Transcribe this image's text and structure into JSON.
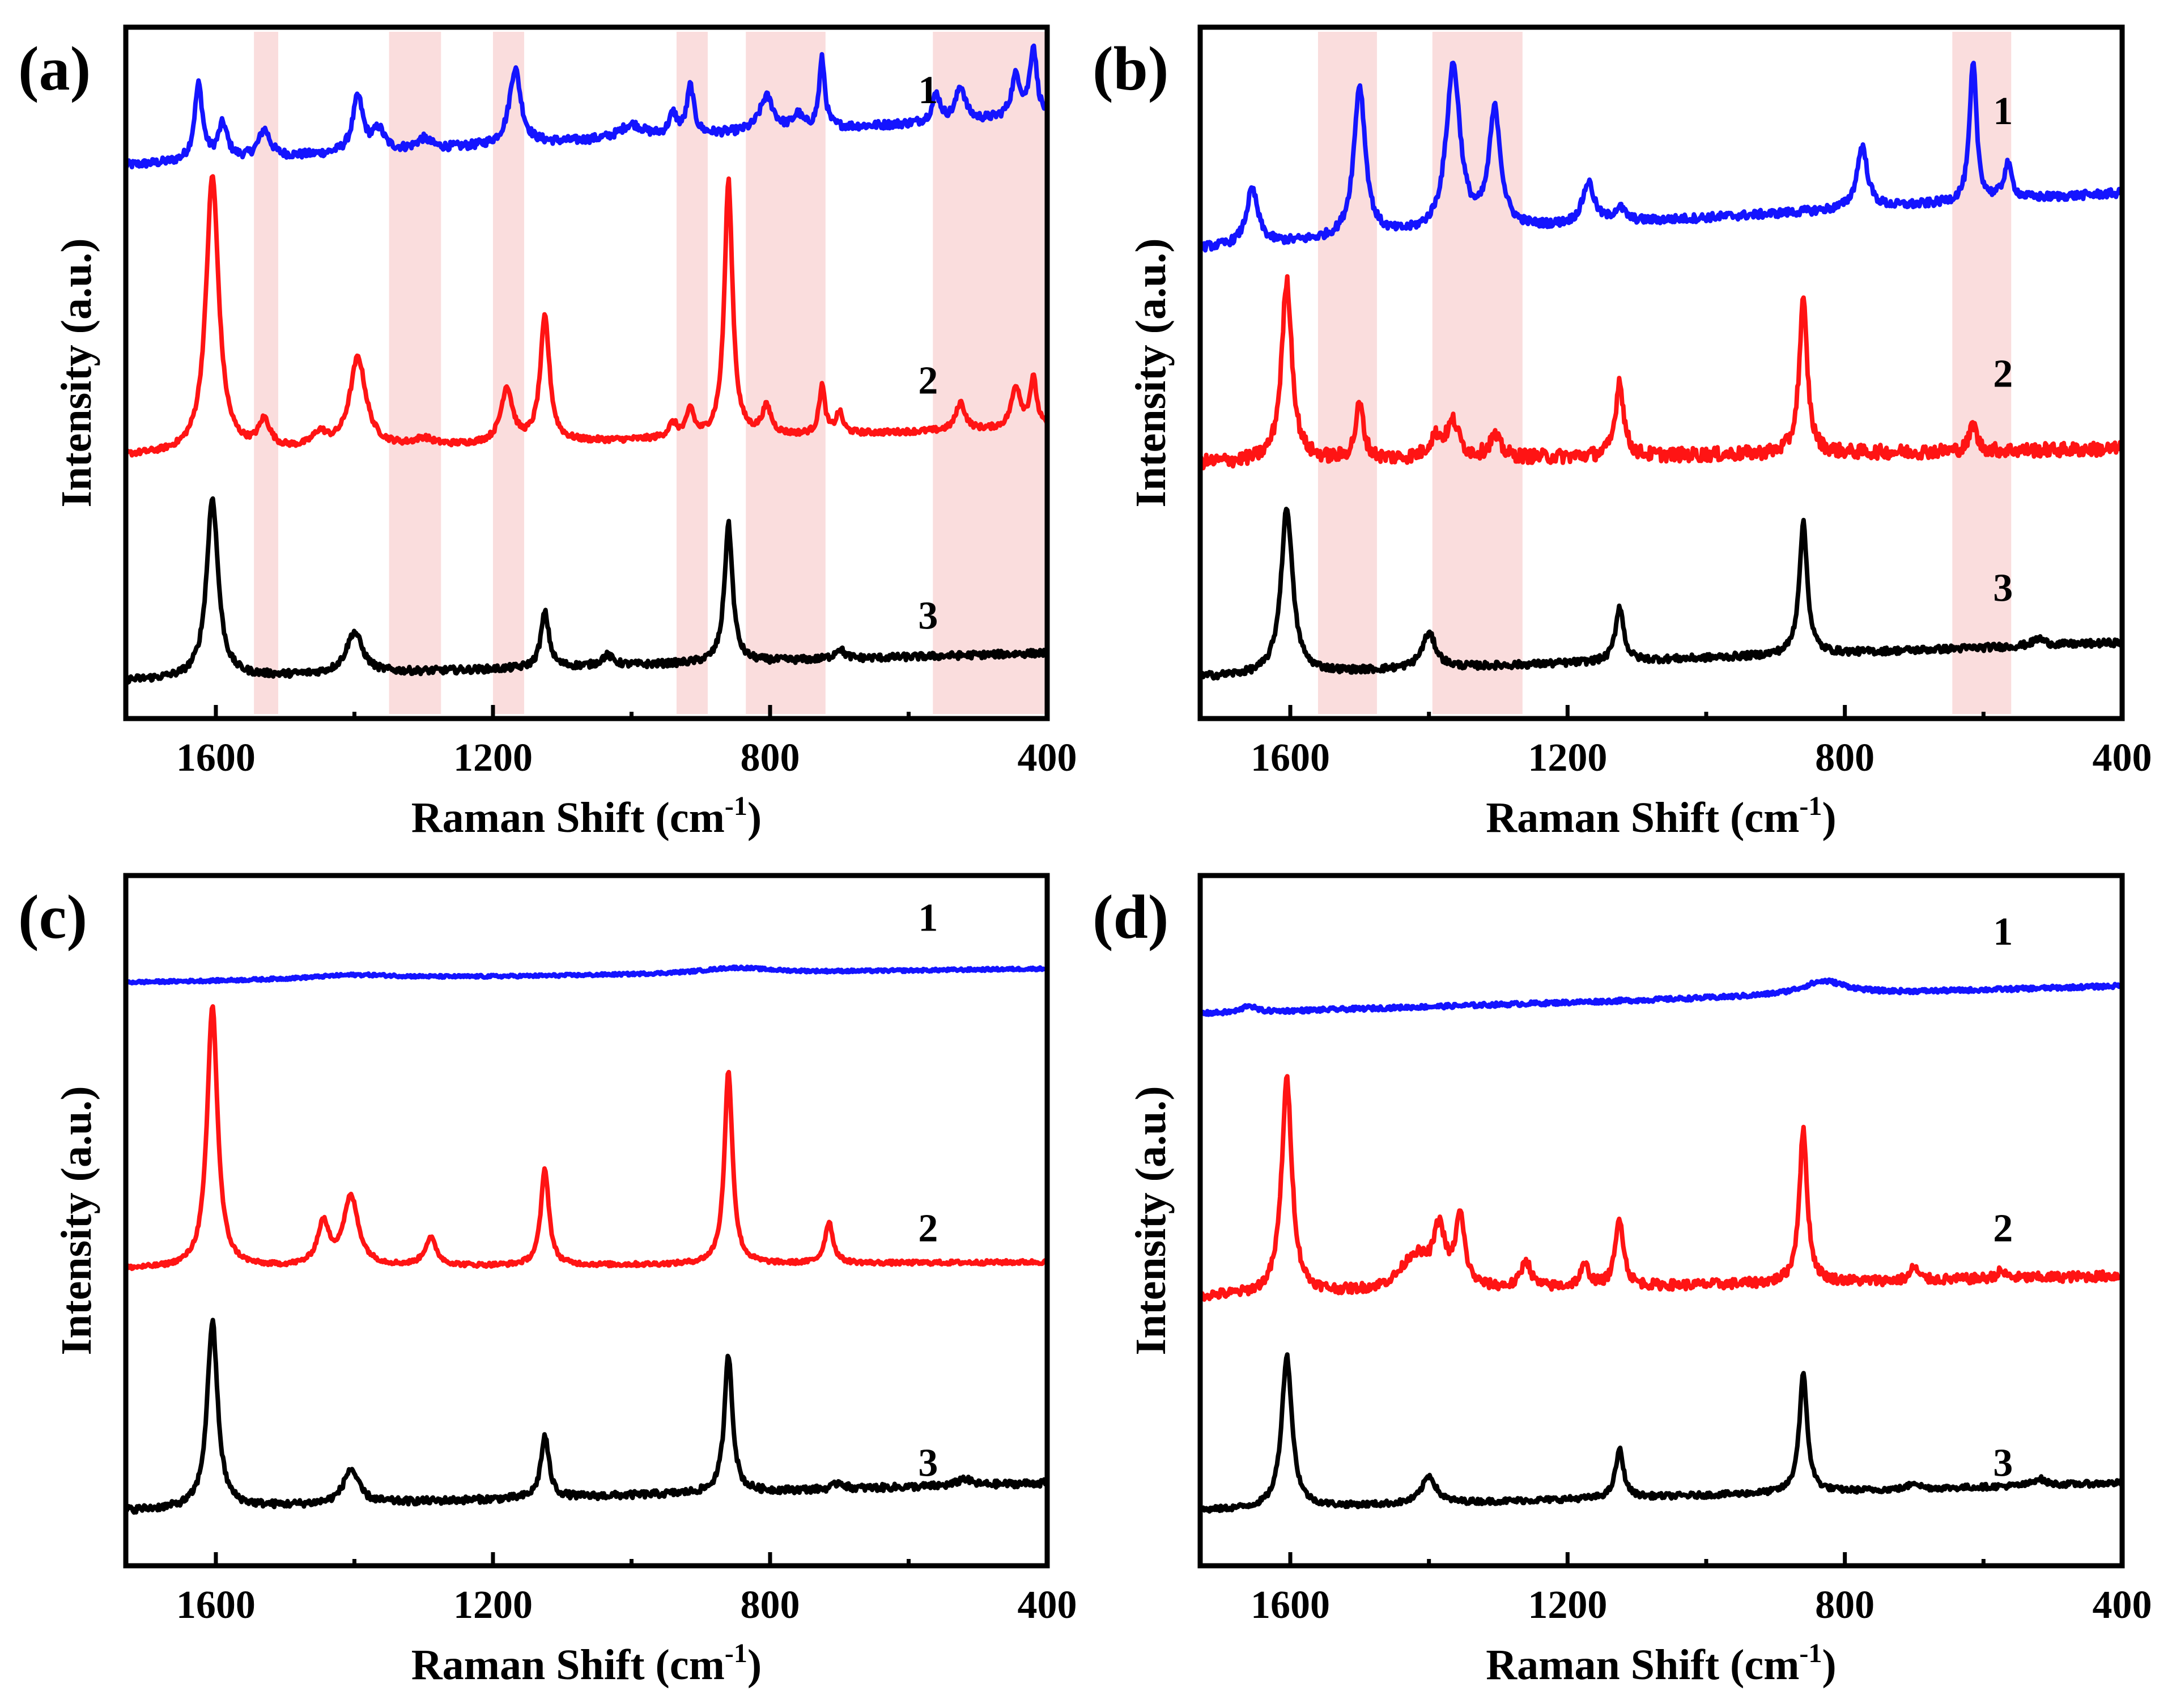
{
  "figure": {
    "colors": {
      "spectrum_1": "#1414ff",
      "spectrum_2": "#ff1414",
      "spectrum_3": "#000000",
      "band": "#f4b4b4"
    }
  },
  "chart_data": [
    {
      "panel": "(a)",
      "type": "line",
      "xlabel": "Raman Shift (cm-1)",
      "xlabel_main": "Raman Shift ",
      "xlabel_unit": "(cm",
      "xlabel_sup": "-1",
      "xlabel_close": ")",
      "ylabel": "Intensity (a.u.)",
      "xlim": [
        1730,
        400
      ],
      "xticks": [
        1600,
        1200,
        800,
        400
      ],
      "xtick_labels": [
        "1600",
        "1200",
        "800",
        "400"
      ],
      "highlight_bands": [
        [
          1545,
          1510
        ],
        [
          1350,
          1275
        ],
        [
          1200,
          1155
        ],
        [
          935,
          890
        ],
        [
          835,
          720
        ],
        [
          565,
          400
        ]
      ],
      "series": [
        {
          "name": "1",
          "color": "#1414ff",
          "baseline": 0.8,
          "slope": 0.07,
          "noise": 0.006,
          "peaks": [
            [
              1625,
              0.11,
              7
            ],
            [
              1590,
              0.05,
              8
            ],
            [
              1530,
              0.04,
              10
            ],
            [
              1395,
              0.08,
              9
            ],
            [
              1365,
              0.03,
              10
            ],
            [
              1300,
              0.015,
              12
            ],
            [
              1168,
              0.11,
              10
            ],
            [
              1000,
              0.02,
              20
            ],
            [
              940,
              0.03,
              7
            ],
            [
              915,
              0.07,
              6
            ],
            [
              805,
              0.05,
              12
            ],
            [
              760,
              0.02,
              8
            ],
            [
              725,
              0.1,
              5
            ],
            [
              560,
              0.04,
              7
            ],
            [
              525,
              0.05,
              8
            ],
            [
              445,
              0.06,
              8
            ],
            [
              420,
              0.1,
              6
            ]
          ]
        },
        {
          "name": "2",
          "color": "#ff1414",
          "baseline": 0.38,
          "slope": 0.04,
          "noise": 0.004,
          "peaks": [
            [
              1605,
              0.4,
              11
            ],
            [
              1530,
              0.04,
              10
            ],
            [
              1450,
              0.02,
              12
            ],
            [
              1395,
              0.13,
              14
            ],
            [
              1300,
              0.01,
              15
            ],
            [
              1180,
              0.08,
              10
            ],
            [
              1125,
              0.18,
              8
            ],
            [
              940,
              0.02,
              8
            ],
            [
              915,
              0.04,
              6
            ],
            [
              860,
              0.37,
              7
            ],
            [
              805,
              0.04,
              8
            ],
            [
              725,
              0.07,
              5
            ],
            [
              700,
              0.03,
              6
            ],
            [
              525,
              0.04,
              8
            ],
            [
              445,
              0.06,
              8
            ],
            [
              420,
              0.07,
              6
            ]
          ]
        },
        {
          "name": "3",
          "color": "#000000",
          "baseline": 0.055,
          "slope": 0.04,
          "noise": 0.005,
          "peaks": [
            [
              1605,
              0.26,
              10
            ],
            [
              1400,
              0.06,
              14
            ],
            [
              1125,
              0.08,
              7
            ],
            [
              1035,
              0.015,
              10
            ],
            [
              860,
              0.2,
              7
            ],
            [
              700,
              0.015,
              8
            ]
          ]
        }
      ],
      "labels": [
        "1",
        "2",
        "3"
      ]
    },
    {
      "panel": "(b)",
      "type": "line",
      "xlabel": "Raman Shift (cm-1)",
      "xlabel_main": "Raman Shift ",
      "xlabel_unit": "(cm",
      "xlabel_sup": "-1",
      "xlabel_close": ")",
      "ylabel": "Intensity (a.u.)",
      "xlim": [
        1730,
        400
      ],
      "xticks": [
        1600,
        1200,
        800,
        400
      ],
      "xtick_labels": [
        "1600",
        "1200",
        "800",
        "400"
      ],
      "highlight_bands": [
        [
          1560,
          1475
        ],
        [
          1395,
          1265
        ],
        [
          645,
          560
        ]
      ],
      "series": [
        {
          "name": "1",
          "color": "#1414ff",
          "baseline": 0.68,
          "slope": 0.08,
          "noise": 0.006,
          "peaks": [
            [
              1655,
              0.08,
              10
            ],
            [
              1500,
              0.22,
              10
            ],
            [
              1365,
              0.24,
              12
            ],
            [
              1305,
              0.17,
              10
            ],
            [
              1170,
              0.06,
              10
            ],
            [
              1125,
              0.02,
              10
            ],
            [
              775,
              0.09,
              9
            ],
            [
              615,
              0.2,
              6
            ],
            [
              565,
              0.05,
              7
            ]
          ]
        },
        {
          "name": "2",
          "color": "#ff1414",
          "baseline": 0.37,
          "slope": 0.02,
          "noise": 0.01,
          "peaks": [
            [
              1605,
              0.26,
              9
            ],
            [
              1500,
              0.08,
              7
            ],
            [
              1390,
              0.03,
              12
            ],
            [
              1365,
              0.05,
              10
            ],
            [
              1305,
              0.03,
              10
            ],
            [
              1125,
              0.11,
              7
            ],
            [
              860,
              0.22,
              7
            ],
            [
              615,
              0.04,
              6
            ]
          ]
        },
        {
          "name": "3",
          "color": "#000000",
          "baseline": 0.06,
          "slope": 0.05,
          "noise": 0.005,
          "peaks": [
            [
              1605,
              0.24,
              10
            ],
            [
              1400,
              0.05,
              12
            ],
            [
              1125,
              0.08,
              7
            ],
            [
              860,
              0.19,
              7
            ],
            [
              520,
              0.01,
              10
            ]
          ]
        }
      ],
      "labels": [
        "1",
        "2",
        "3"
      ]
    },
    {
      "panel": "(c)",
      "type": "line",
      "xlabel": "Raman Shift (cm-1)",
      "xlabel_main": "Raman Shift ",
      "xlabel_unit": "(cm",
      "xlabel_sup": "-1",
      "xlabel_close": ")",
      "ylabel": "Intensity (a.u.)",
      "xlim": [
        1730,
        400
      ],
      "xticks": [
        1600,
        1200,
        800,
        400
      ],
      "xtick_labels": [
        "1600",
        "1200",
        "800",
        "400"
      ],
      "highlight_bands": [],
      "series": [
        {
          "name": "1",
          "color": "#1414ff",
          "baseline": 0.845,
          "slope": 0.02,
          "noise": 0.002,
          "peaks": [
            [
              1400,
              0.006,
              80
            ],
            [
              850,
              0.008,
              60
            ]
          ]
        },
        {
          "name": "2",
          "color": "#ff1414",
          "baseline": 0.43,
          "slope": 0.01,
          "noise": 0.003,
          "peaks": [
            [
              1605,
              0.38,
              9
            ],
            [
              1445,
              0.06,
              10
            ],
            [
              1405,
              0.1,
              13
            ],
            [
              1290,
              0.04,
              10
            ],
            [
              1125,
              0.14,
              7
            ],
            [
              860,
              0.28,
              7
            ],
            [
              715,
              0.06,
              7
            ]
          ]
        },
        {
          "name": "3",
          "color": "#000000",
          "baseline": 0.08,
          "slope": 0.04,
          "noise": 0.005,
          "peaks": [
            [
              1605,
              0.27,
              9
            ],
            [
              1405,
              0.05,
              13
            ],
            [
              1125,
              0.09,
              7
            ],
            [
              860,
              0.2,
              7
            ],
            [
              700,
              0.01,
              8
            ],
            [
              520,
              0.01,
              10
            ]
          ]
        }
      ],
      "labels": [
        "1",
        "2",
        "3"
      ]
    },
    {
      "panel": "(d)",
      "type": "line",
      "xlabel": "Raman Shift (cm-1)",
      "xlabel_main": "Raman Shift ",
      "xlabel_unit": "(cm",
      "xlabel_sup": "-1",
      "xlabel_close": ")",
      "ylabel": "Intensity (a.u.)",
      "xlim": [
        1730,
        400
      ],
      "xticks": [
        1600,
        1200,
        800,
        400
      ],
      "xtick_labels": [
        "1600",
        "1200",
        "800",
        "400"
      ],
      "highlight_bands": [],
      "series": [
        {
          "name": "1",
          "color": "#1414ff",
          "baseline": 0.8,
          "slope": 0.04,
          "noise": 0.003,
          "peaks": [
            [
              1660,
              0.01,
              10
            ],
            [
              830,
              0.02,
              40
            ]
          ]
        },
        {
          "name": "2",
          "color": "#ff1414",
          "baseline": 0.39,
          "slope": 0.03,
          "noise": 0.007,
          "peaks": [
            [
              1605,
              0.31,
              9
            ],
            [
              1420,
              0.05,
              25
            ],
            [
              1385,
              0.08,
              10
            ],
            [
              1355,
              0.1,
              8
            ],
            [
              1260,
              0.04,
              8
            ],
            [
              1175,
              0.03,
              8
            ],
            [
              1125,
              0.1,
              7
            ],
            [
              860,
              0.22,
              7
            ],
            [
              700,
              0.02,
              6
            ],
            [
              575,
              0.01,
              8
            ]
          ]
        },
        {
          "name": "3",
          "color": "#000000",
          "baseline": 0.08,
          "slope": 0.04,
          "noise": 0.004,
          "peaks": [
            [
              1605,
              0.22,
              9
            ],
            [
              1400,
              0.04,
              12
            ],
            [
              1125,
              0.07,
              7
            ],
            [
              860,
              0.17,
              7
            ],
            [
              700,
              0.01,
              8
            ],
            [
              520,
              0.01,
              10
            ]
          ]
        }
      ],
      "labels": [
        "1",
        "2",
        "3"
      ]
    }
  ]
}
